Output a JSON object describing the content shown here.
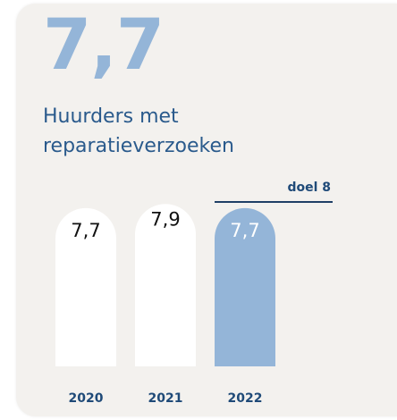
{
  "chart_data": {
    "type": "bar",
    "title": "7,7",
    "subtitle": "Huurders met reparatieverzoeken",
    "categories": [
      "2020",
      "2021",
      "2022"
    ],
    "values": [
      7.7,
      7.9,
      7.7
    ],
    "value_labels": [
      "7,7",
      "7,9",
      "7,7"
    ],
    "colors": [
      "#ffffff",
      "#ffffff",
      "#94b5d8"
    ],
    "target": {
      "value": 8,
      "label": "doel 8"
    }
  }
}
